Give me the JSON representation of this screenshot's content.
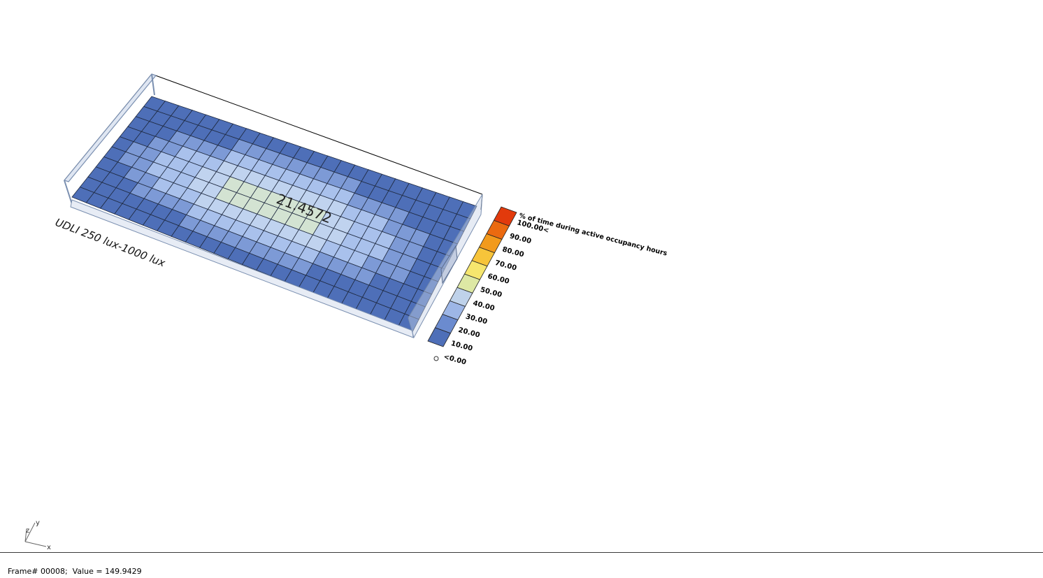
{
  "viewport": {
    "result_label": "UDLI 250 lux-1000 lux",
    "center_value": "21.4572",
    "grid": {
      "rows": 10,
      "cols": 24
    },
    "colors": {
      "dark_blue": "#4e6fb8",
      "mid_blue": "#7d9ad6",
      "light_blue": "#a9c1ec",
      "pale_blue": "#c0d3ef",
      "pale_green": "#d3e3d2",
      "frame_stroke": "#7a8fb0"
    }
  },
  "legend": {
    "title": "% of time during active occupancy hours",
    "labels": [
      "<0.00",
      "10.00",
      "20.00",
      "30.00",
      "40.00",
      "50.00",
      "60.00",
      "70.00",
      "80.00",
      "90.00",
      "100.00<"
    ],
    "colors": [
      "#4e6fb8",
      "#6b8bcf",
      "#9db6e6",
      "#bfd2ea",
      "#dde8a4",
      "#f6e66e",
      "#f7c43a",
      "#f29a1c",
      "#eb6a10",
      "#e23a0c"
    ]
  },
  "axes_widget": {
    "x": "x",
    "y": "y",
    "z": "z"
  },
  "status_bar": {
    "text": "Frame# 00008;  Value = 149.9429"
  }
}
